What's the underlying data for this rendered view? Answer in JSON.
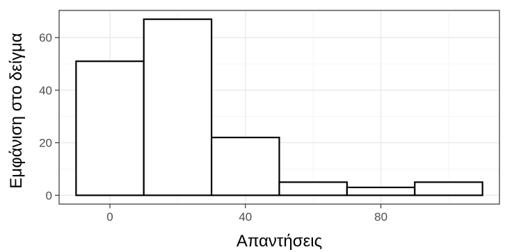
{
  "chart_data": {
    "type": "bar",
    "subtype": "histogram",
    "xlabel": "Απαντήσεις",
    "ylabel": "Εμφάνιση στο δείγμα",
    "bins": [
      {
        "x0": -10,
        "x1": 10,
        "count": 51
      },
      {
        "x0": 10,
        "x1": 30,
        "count": 67
      },
      {
        "x0": 30,
        "x1": 50,
        "count": 22
      },
      {
        "x0": 50,
        "x1": 70,
        "count": 5
      },
      {
        "x0": 70,
        "x1": 90,
        "count": 3
      },
      {
        "x0": 90,
        "x1": 110,
        "count": 5
      }
    ],
    "xlim": [
      -15,
      115
    ],
    "ylim": [
      -3.35,
      70.35
    ],
    "xticks": [
      0,
      40,
      80
    ],
    "xticks_minor": [
      20,
      60,
      100
    ],
    "yticks": [
      0,
      20,
      40,
      60
    ],
    "yticks_minor": [
      10,
      30,
      50,
      70
    ],
    "grid": true,
    "bar_fill": "#ffffff",
    "bar_stroke": "#000000",
    "grid_major_color": "#ebebeb",
    "grid_minor_color": "#f4f4f4",
    "panel_border_color": "#333333"
  }
}
